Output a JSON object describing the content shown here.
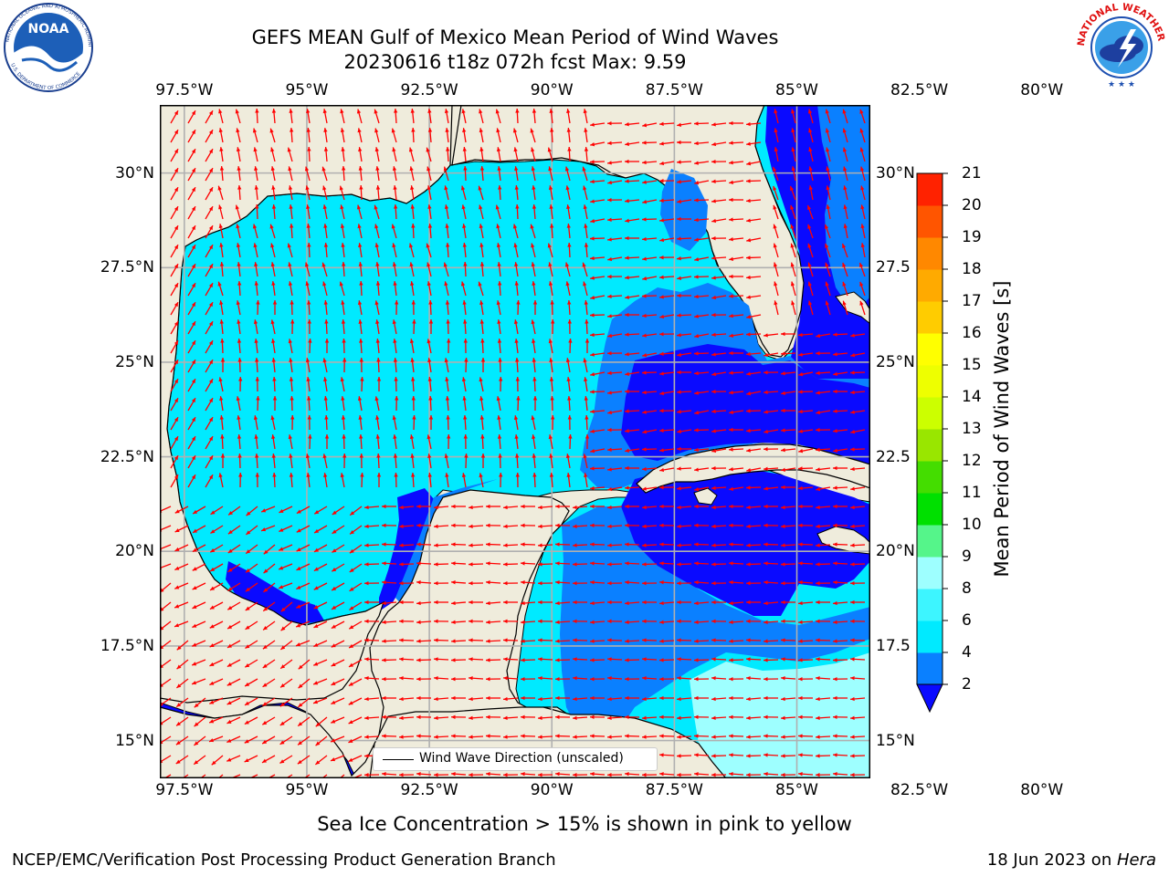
{
  "title": {
    "line1": "GEFS MEAN Gulf of Mexico Mean Period of Wind Waves",
    "line2": "20230616 t18z 072h fcst   Max: 9.59"
  },
  "logos": {
    "noaa": {
      "text": "NOAA",
      "ring_text": "NATIONAL OCEANIC AND ATMOSPHERIC ADMINISTRATION · U.S. DEPARTMENT OF COMMERCE"
    },
    "nws": {
      "ring_text": "NATIONAL WEATHER SERVICE"
    }
  },
  "map": {
    "lon_range": [
      -98,
      -83.5
    ],
    "lat_range": [
      14,
      31.8
    ],
    "lon_ticks": [
      "97.5°W",
      "95°W",
      "92.5°W",
      "90°W",
      "87.5°W",
      "85°W",
      "82.5°W",
      "80°W"
    ],
    "lon_tick_values": [
      -97.5,
      -95,
      -92.5,
      -90,
      -87.5,
      -85,
      -82.5,
      -80
    ],
    "lat_ticks": [
      "15°N",
      "17.5°N",
      "20°N",
      "22.5°N",
      "25°N",
      "27.5°N",
      "30°N"
    ],
    "lat_ticks_right": [
      "15°N",
      "17.5",
      "20°N",
      "22.5",
      "25°N",
      "27.5",
      "30°N"
    ],
    "lat_tick_values": [
      15,
      17.5,
      20,
      22.5,
      25,
      27.5,
      30
    ],
    "grid": true,
    "colors": {
      "land": "#efecdc",
      "coast": "#000000",
      "arrow": "#ff0000",
      "grid": "#b0b0b0"
    }
  },
  "legend": {
    "label": "Wind Wave Direction (unscaled)"
  },
  "colorbar": {
    "title": "Mean Period of Wind Waves [s]",
    "levels": [
      "2",
      "4",
      "6",
      "8",
      "9",
      "10",
      "11",
      "12",
      "13",
      "14",
      "15",
      "16",
      "17",
      "18",
      "19",
      "20",
      "21"
    ],
    "colors": [
      "#0a0aff",
      "#0a80ff",
      "#00eaff",
      "#3df5ff",
      "#9effff",
      "#55f58a",
      "#00e000",
      "#44dd00",
      "#99e600",
      "#ccff00",
      "#eeff00",
      "#ffff00",
      "#ffcc00",
      "#ffaa00",
      "#ff8800",
      "#ff5500",
      "#ff2200",
      "#ff0000"
    ]
  },
  "note": "Sea Ice Concentration > 15% is shown in pink to yellow",
  "footer": {
    "left": "NCEP/EMC/Verification Post Processing Product Generation Branch",
    "right_date": "18 Jun 2023 on ",
    "right_machine": "Hera"
  }
}
